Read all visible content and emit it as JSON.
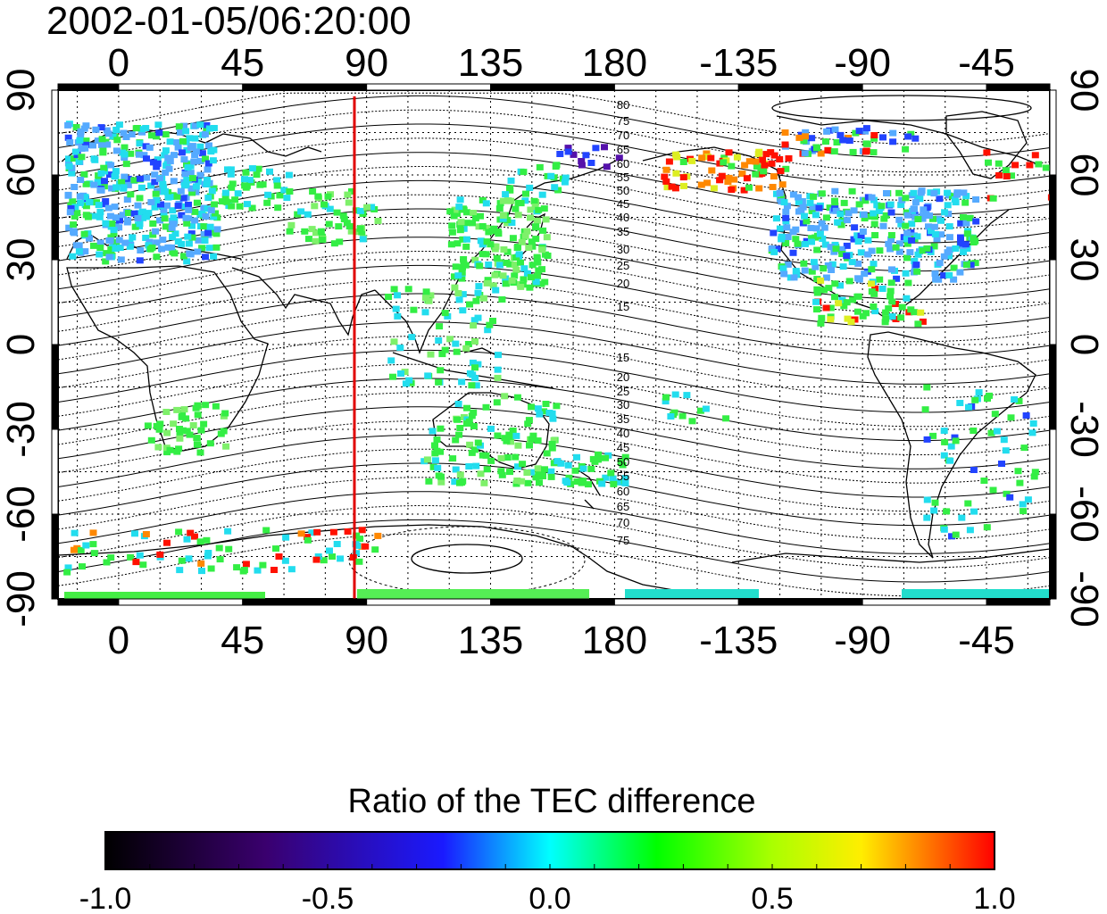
{
  "title": "2002-01-05/06:20:00",
  "axes": {
    "lon_labels": [
      "0",
      "45",
      "90",
      "135",
      "180",
      "-135",
      "-90",
      "-45"
    ],
    "lat_labels_left": [
      "90",
      "60",
      "30",
      "0",
      "-30",
      "-60",
      "-90"
    ],
    "lat_labels_right": [
      "90",
      "60",
      "30",
      "0",
      "-30",
      "-60",
      "-90"
    ]
  },
  "contour_labels": {
    "north": [
      "80",
      "75",
      "70",
      "65",
      "60",
      "55",
      "50",
      "45",
      "40",
      "35",
      "30",
      "25",
      "20",
      "15"
    ],
    "south": [
      "15",
      "20",
      "25",
      "30",
      "35",
      "40",
      "45",
      "50",
      "55",
      "60",
      "65",
      "70",
      "75"
    ]
  },
  "colorbar": {
    "title": "Ratio of the TEC difference",
    "tick_labels": [
      "-1.0",
      "-0.5",
      "0.0",
      "0.5",
      "1.0"
    ],
    "range": [
      -1.0,
      1.0
    ],
    "colors": [
      "#000000",
      "#3a006e",
      "#0000ff",
      "#00ffff",
      "#00ff00",
      "#ffff00",
      "#ff0000"
    ]
  },
  "terminator": {
    "longitude": 86,
    "color": "#e00000"
  },
  "map": {
    "lon_range": [
      -22,
      338
    ],
    "lat_range": [
      -90,
      90
    ],
    "grid": "dotted",
    "coastlines": true
  }
}
